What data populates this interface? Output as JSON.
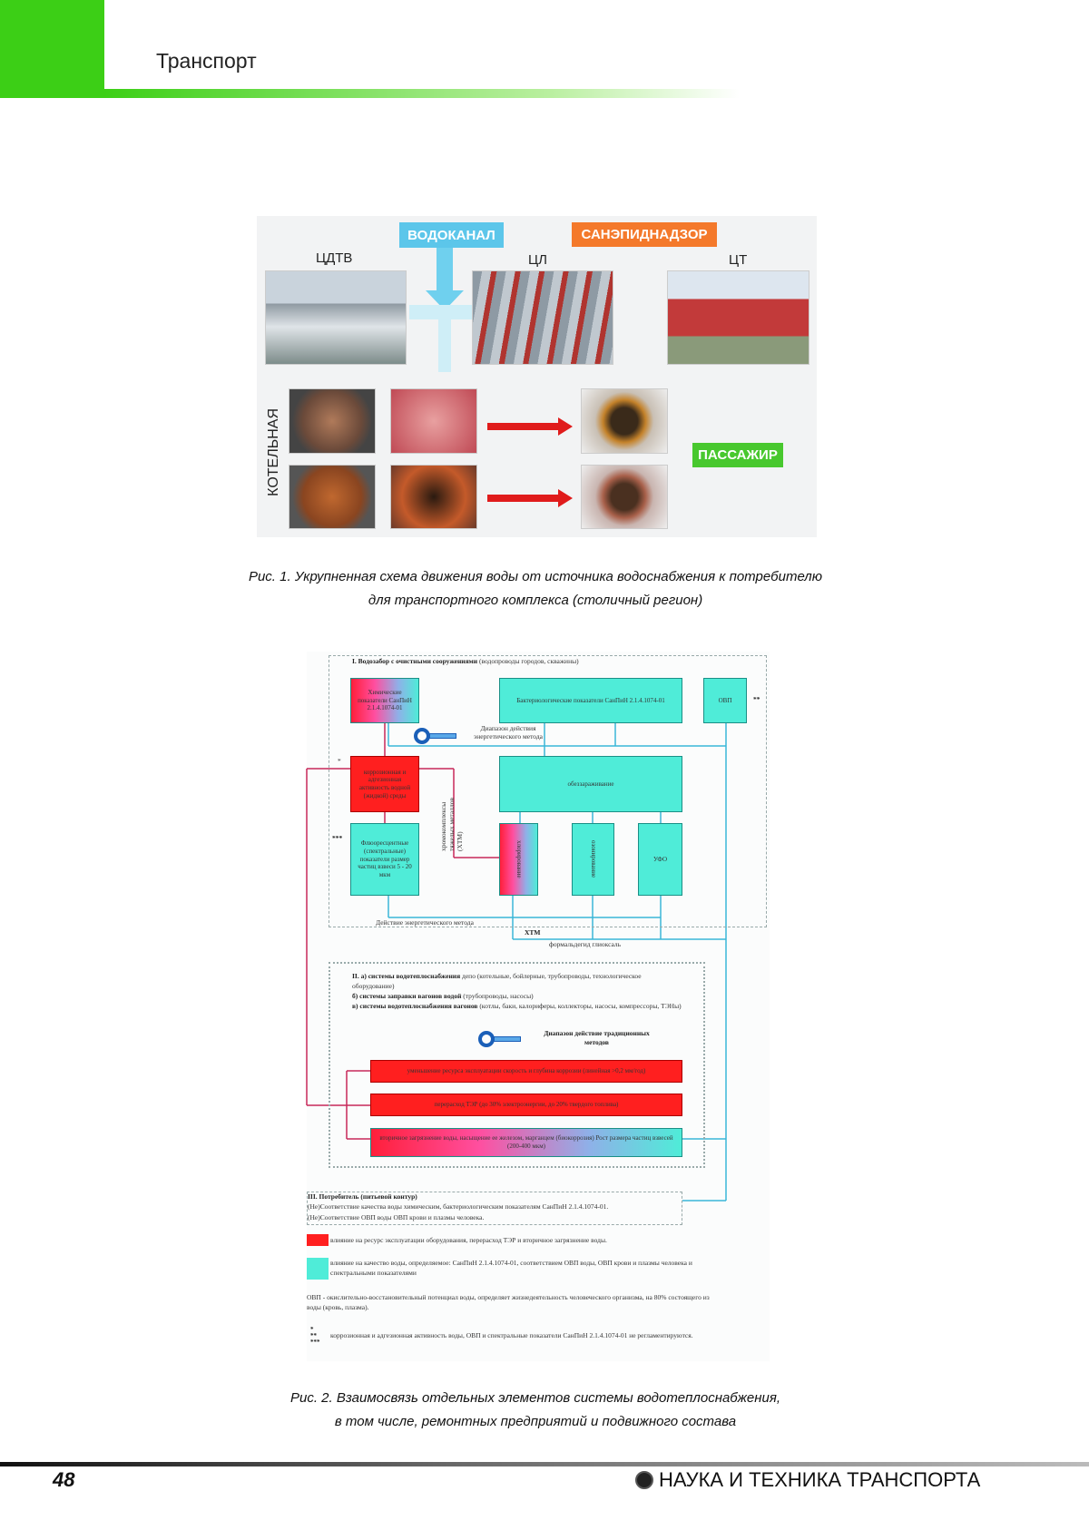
{
  "header": {
    "section": "Транспорт",
    "brand_color": "#3ccf16"
  },
  "figure1": {
    "labels": {
      "vodokanal": "ВОДОКАНАЛ",
      "sanepid": "САНЭПИДНАДЗОР",
      "cdtv": "ЦДТВ",
      "cl": "ЦЛ",
      "ct": "ЦТ",
      "kotelnaya": "КОТЕЛЬНАЯ",
      "passazhir": "ПАССАЖИР"
    },
    "caption": [
      "Рис. 1. Укрупненная схема движения воды от источника водоснабжения к потребителю",
      "для транспортного комплекса (столичный регион)"
    ]
  },
  "figure2": {
    "section1_title_bold": "I. Водозабор с очистными сооружениями",
    "section1_title_rest": " (водопроводы городов, скважины)",
    "chem": "Химические показатели СанПиН 2.1.4.1074-01",
    "bact": "Бактериологические показатели СанПиН 2.1.4.1074-01",
    "ovp": "ОВП",
    "ovp_mark": "**",
    "energy_range": "Диапазон действия энергетического метода",
    "corrosion": "коррозионная и адгезионная активность водной (жидкой) среды",
    "corrosion_mark": "*",
    "disinfection": "обеззараживание",
    "fluor": "Флюоресцентные (спектральные) показатели размер частиц взвеси 5 - 20 мкм",
    "fluor_mark": "***",
    "htm_vertical": "хромокомплексы тяжелых металлов (ХТМ)",
    "chlor": "хлорирование",
    "ozon": "озонирование",
    "ufo": "УФО",
    "energy_action": "Действие энергетического метода",
    "htm": "ХТМ",
    "formaldehyde": "формальдегид глиоксаль",
    "s2_a_bold": "II. а) системы водотеплоснабжения",
    "s2_a_rest": " депо (котельные, бойлерные, трубопроводы, технологическое оборудование)",
    "s2_b_bold": "б) системы заправки вагонов водой",
    "s2_b_rest": " (трубопроводы, насосы)",
    "s2_c_bold": "в) системы водотеплоснабжения вагонов",
    "s2_c_rest": " (котлы, баки, калориферы, коллекторы, насосы, компрессоры, ТЭНы)",
    "trad_range": "Диапазон действие традиционных методов",
    "bar1": "уменьшение ресурса эксплуатации скорость и глубина коррозии (линейная >0,2 мм/год)",
    "bar2": "перерасход ТЭР (до 30% электроэнергии, до 20% твердого топлива)",
    "bar3": "вторичное загрязнение воды, насыщение ее железом, марганцем (биокоррозия) Рост размера частиц взвесей (200-400 мкм)",
    "s3_title": "III. Потребитель (питьевой контур)",
    "s3_l1": "(Не)Соответствие качества воды химическим, бактериологическим показателям СанПиН 2.1.4.1074-01.",
    "s3_l2": "(Не)Соответствие ОВП воды ОВП крови и плазмы человека.",
    "legend_red": "влияние на ресурс эксплуатации оборудования, перерасход ТЭР и вторичное загрязнение воды.",
    "legend_cyan": "влияние на качество воды, определяемое: СанПиН 2.1.4.1074-01, соответствием ОВП воды, ОВП крови и плазмы человека и спектральными показателями",
    "ovp_note": "ОВП - окислительно-восстановительный потенциал воды, определяет жизнедеятельность человеческого организма, на 80% состоящего из воды (кровь, плазма).",
    "marks_note": "коррозионная и адгезионная активность воды, ОВП и спектральные показатели СанПиН 2.1.4.1074-01 не регламентируются.",
    "colors": {
      "red": "#ff1f1f",
      "cyan": "#4fecd8"
    },
    "caption": [
      "Рис. 2. Взаимосвязь отдельных элементов системы водотеплоснабжения,",
      "в том числе, ремонтных предприятий и подвижного состава"
    ]
  },
  "footer": {
    "page": "48",
    "journal": "НАУКА И ТЕХНИКА ТРАНСПОРТА"
  }
}
